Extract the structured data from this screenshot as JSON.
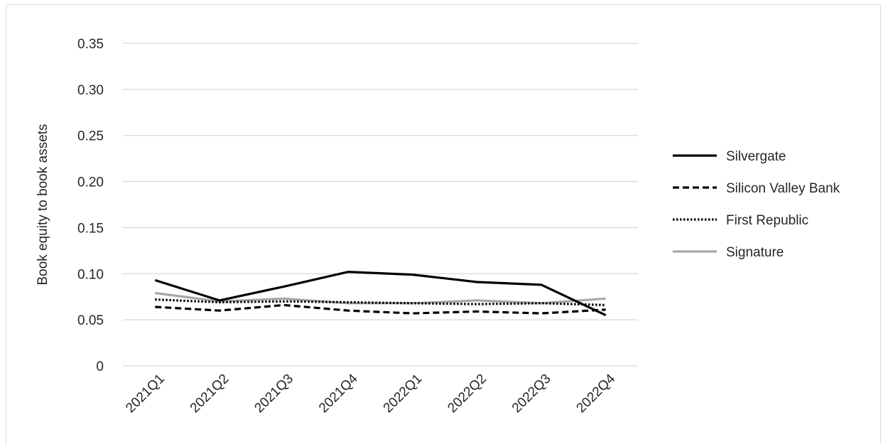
{
  "chart_data": {
    "type": "line",
    "title": "",
    "xlabel": "",
    "ylabel": "Book equity to book assets",
    "categories": [
      "2021Q1",
      "2021Q2",
      "2021Q3",
      "2021Q4",
      "2022Q1",
      "2022Q2",
      "2022Q3",
      "2022Q4"
    ],
    "y_ticks": [
      "0",
      "0.05",
      "0.10",
      "0.15",
      "0.20",
      "0.25",
      "0.30",
      "0.35"
    ],
    "ylim": [
      0,
      0.35
    ],
    "grid": true,
    "legend_position": "right",
    "series": [
      {
        "name": "Silvergate",
        "values": [
          0.093,
          0.071,
          0.086,
          0.102,
          0.099,
          0.091,
          0.088,
          0.055
        ],
        "color": "#000000",
        "dash": "solid"
      },
      {
        "name": "Silicon Valley Bank",
        "values": [
          0.064,
          0.06,
          0.066,
          0.06,
          0.057,
          0.059,
          0.057,
          0.061
        ],
        "color": "#000000",
        "dash": "dashed"
      },
      {
        "name": "First Republic",
        "values": [
          0.072,
          0.069,
          0.07,
          0.069,
          0.068,
          0.067,
          0.068,
          0.066
        ],
        "color": "#000000",
        "dash": "dotted"
      },
      {
        "name": "Signature",
        "values": [
          0.079,
          0.07,
          0.073,
          0.068,
          0.068,
          0.071,
          0.068,
          0.073
        ],
        "color": "#a6a6a6",
        "dash": "solid"
      }
    ]
  }
}
